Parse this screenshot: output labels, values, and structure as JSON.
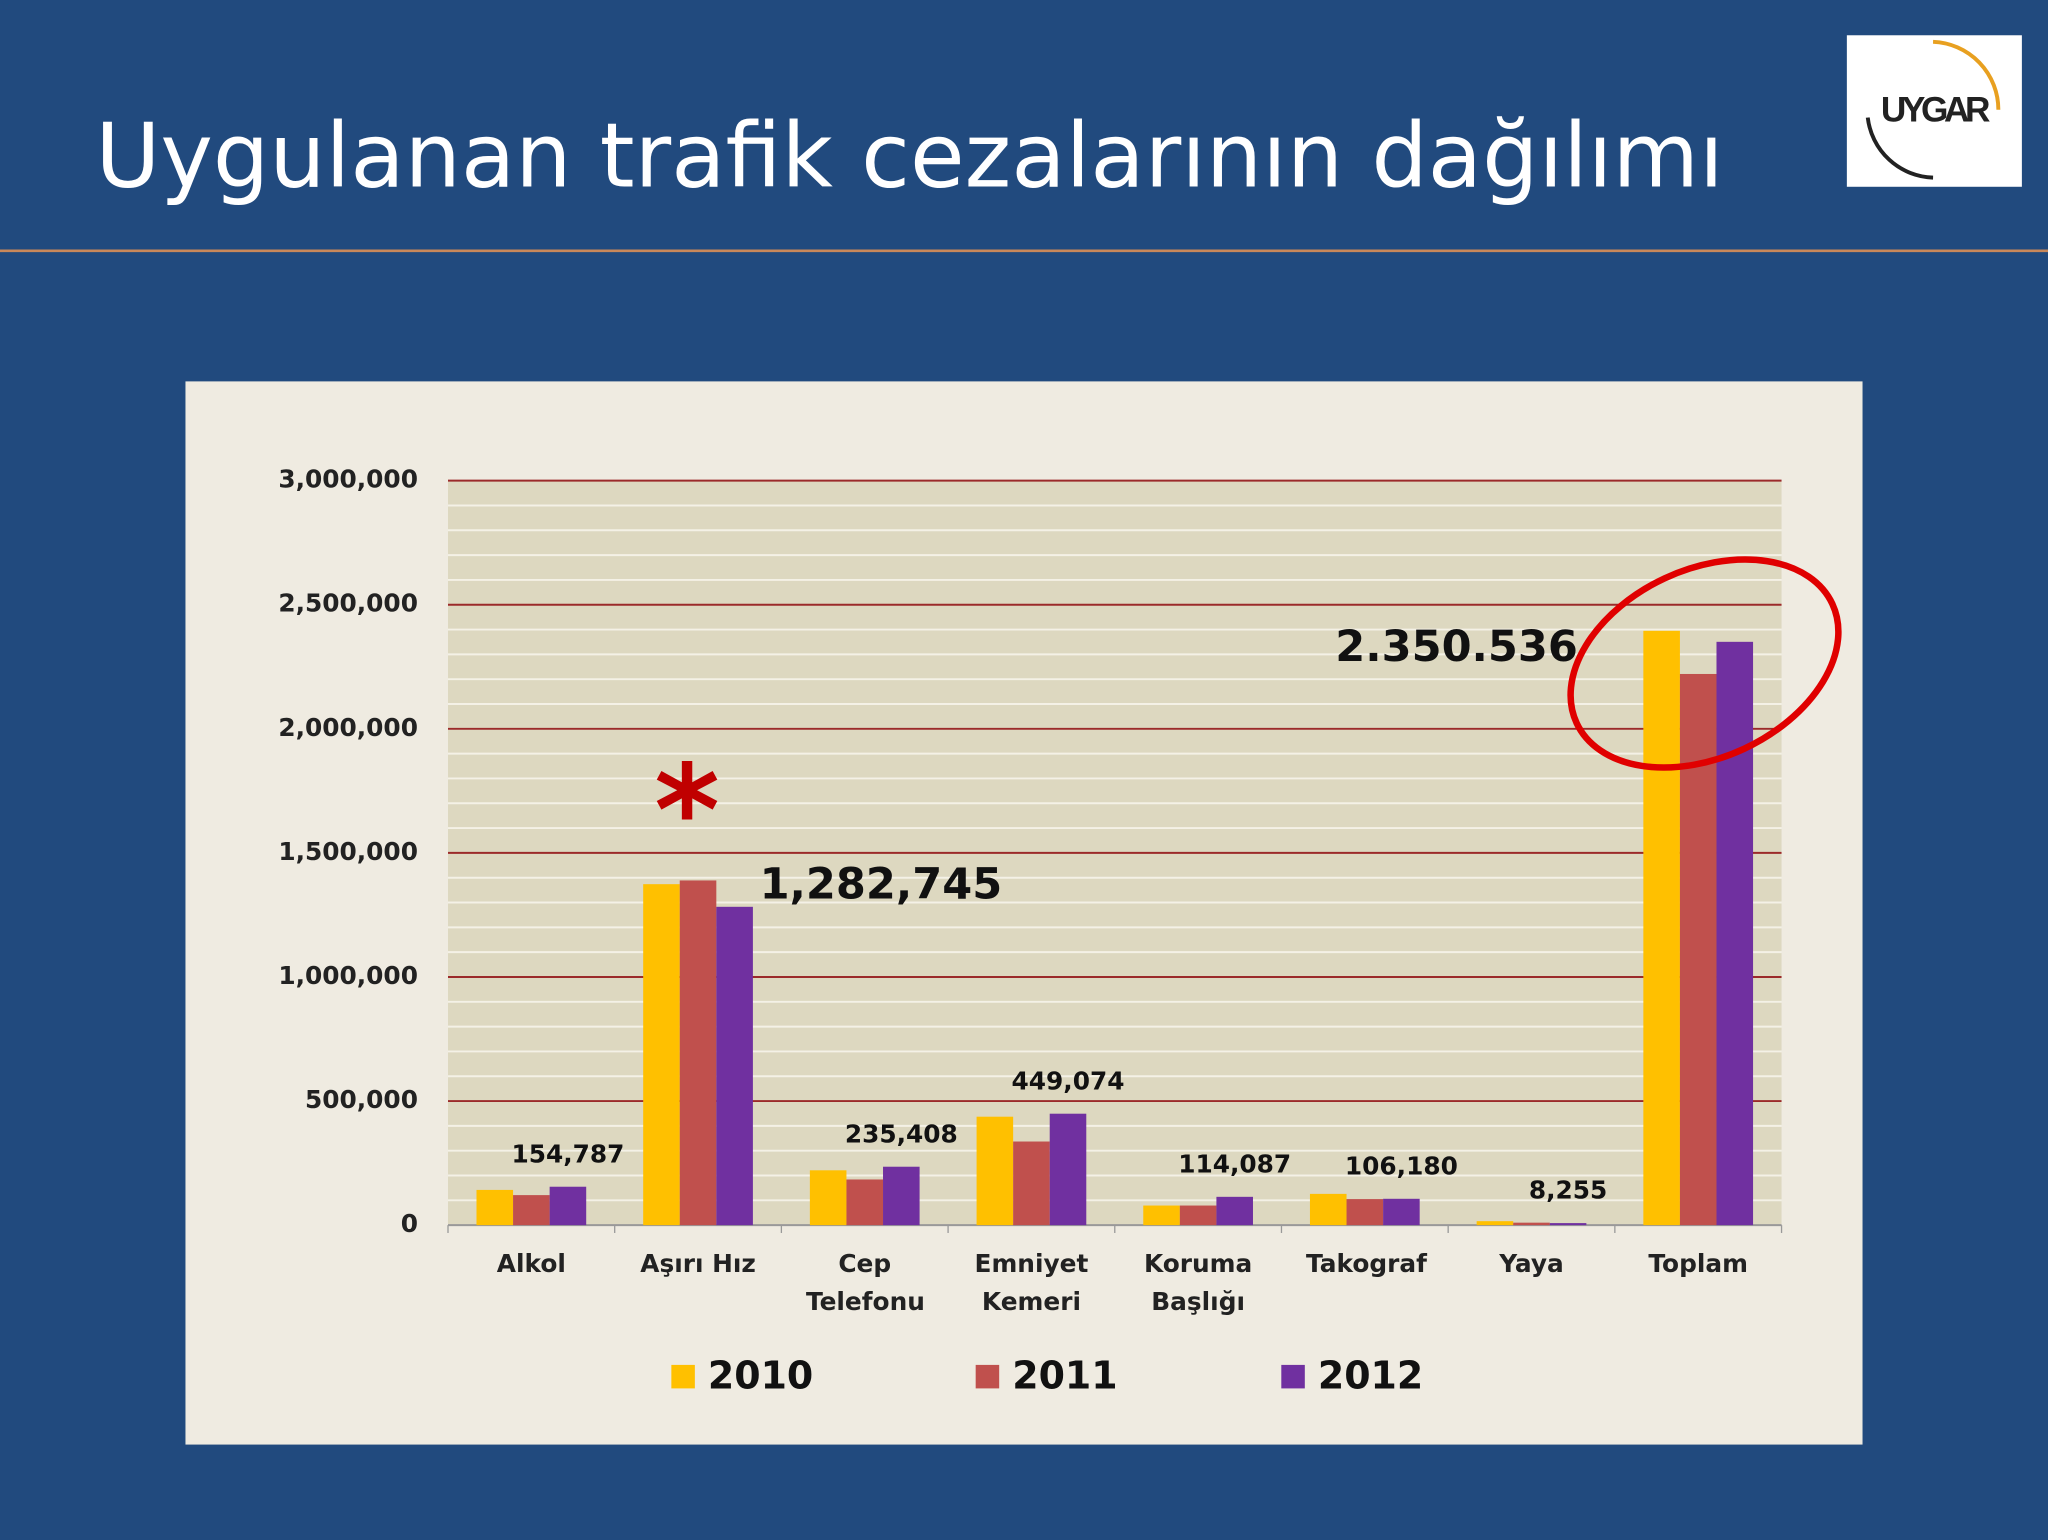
{
  "header": {
    "title": "Uygulanan trafik cezalarının dağılımı",
    "logo_text": "UYGAR"
  },
  "chart_data": {
    "type": "bar",
    "categories": [
      "Alkol",
      "Aşırı Hız",
      "Cep Telefonu",
      "Emniyet Kemeri",
      "Koruma Başlığı",
      "Takograf",
      "Yaya",
      "Toplam"
    ],
    "series": [
      {
        "name": "2010",
        "color": "#ffc000",
        "values": [
          142000,
          1374000,
          221000,
          437000,
          79000,
          126000,
          16000,
          2395000
        ]
      },
      {
        "name": "2011",
        "color": "#c0504d",
        "values": [
          121000,
          1389000,
          184000,
          337000,
          79000,
          105000,
          10000,
          2221000
        ]
      },
      {
        "name": "2012",
        "color": "#7030a0",
        "values": [
          154787,
          1282745,
          235408,
          449074,
          114087,
          106180,
          8255,
          2350536
        ],
        "value_labels": [
          "154,787",
          "1,282,745",
          "235,408",
          "449,074",
          "114,087",
          "106,180",
          "8,255",
          "2.350.536"
        ]
      }
    ],
    "ylim": [
      0,
      3000000
    ],
    "yticks": [
      0,
      {
        "value": 500000,
        "label": "500,000"
      },
      {
        "value": 1000000,
        "label": "1,000,000"
      },
      {
        "value": 1500000,
        "label": "1,500,000"
      },
      {
        "value": 2000000,
        "label": "2,000,000"
      },
      {
        "value": 2500000,
        "label": "2,500,000"
      },
      {
        "value": 3000000,
        "label": "3,000,000"
      }
    ],
    "grid": true,
    "legend": "bottom",
    "annotations": [
      "*"
    ]
  }
}
